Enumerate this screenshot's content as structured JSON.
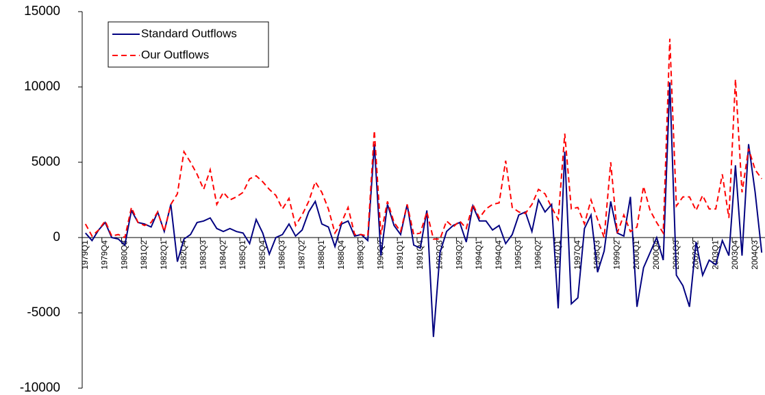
{
  "chart_data": {
    "type": "line",
    "categories": [
      "1979Q1",
      null,
      null,
      "1979Q4",
      null,
      null,
      "1980Q3",
      null,
      null,
      "1981Q2",
      null,
      null,
      "1982Q1",
      null,
      null,
      "1982Q4",
      null,
      null,
      "1983Q3",
      null,
      null,
      "1984Q2",
      null,
      null,
      "1985Q1",
      null,
      null,
      "1985Q4",
      null,
      null,
      "1986Q3",
      null,
      null,
      "1987Q2",
      null,
      null,
      "1988Q1",
      null,
      null,
      "1988Q4",
      null,
      null,
      "1989Q3",
      null,
      null,
      "1990Q2",
      null,
      null,
      "1991Q1",
      null,
      null,
      "1991Q4",
      null,
      null,
      "1992Q3",
      null,
      null,
      "1993Q2",
      null,
      null,
      "1994Q1",
      null,
      null,
      "1994Q4",
      null,
      null,
      "1995Q3",
      null,
      null,
      "1996Q2",
      null,
      null,
      "1997Q1",
      null,
      null,
      "1997Q4",
      null,
      null,
      "1998Q3",
      null,
      null,
      "1999Q2",
      null,
      null,
      "2000Q1",
      null,
      null,
      "2000Q4",
      null,
      null,
      "2001Q3",
      null,
      null,
      "2002Q2",
      null,
      null,
      "2003Q1",
      null,
      null,
      "2003Q4",
      null,
      null,
      "2004Q3",
      null
    ],
    "series": [
      {
        "name": "Standard Outflows",
        "color": "#000080",
        "line_style": "solid",
        "values": [
          300,
          -200,
          500,
          1000,
          0,
          -100,
          -500,
          1800,
          1000,
          900,
          700,
          1700,
          400,
          2200,
          -1600,
          -100,
          200,
          1000,
          1100,
          1300,
          600,
          400,
          600,
          400,
          300,
          -400,
          1200,
          300,
          -1100,
          0,
          200,
          900,
          100,
          500,
          1700,
          2400,
          900,
          700,
          -600,
          900,
          1100,
          100,
          200,
          -200,
          6200,
          -1200,
          2200,
          800,
          200,
          2200,
          -500,
          -700,
          1800,
          -6600,
          -1000,
          400,
          800,
          1000,
          -300,
          2100,
          1100,
          1100,
          500,
          800,
          -400,
          200,
          1500,
          1700,
          400,
          2500,
          1700,
          2200,
          -4700,
          5700,
          -4400,
          -4000,
          600,
          1500,
          -2300,
          -900,
          2400,
          300,
          100,
          2700,
          -4600,
          -2000,
          -1000,
          0,
          -1500,
          10300,
          -2500,
          -3200,
          -4600,
          -300,
          -2500,
          -1500,
          -1800,
          -200,
          -1200,
          4800,
          -1200,
          6200,
          3000,
          -1000
        ]
      },
      {
        "name": "Our Outflows",
        "color": "#ff0000",
        "line_style": "dashed",
        "values": [
          900,
          100,
          500,
          1100,
          100,
          200,
          0,
          2000,
          1000,
          800,
          1000,
          1700,
          400,
          2200,
          2900,
          5700,
          5000,
          4200,
          3200,
          4500,
          2200,
          3000,
          2500,
          2700,
          3000,
          3900,
          4100,
          3700,
          3200,
          2800,
          1900,
          2600,
          800,
          1500,
          2400,
          3700,
          3000,
          1900,
          300,
          1000,
          2000,
          200,
          200,
          100,
          7100,
          200,
          2400,
          1000,
          400,
          2200,
          200,
          300,
          1700,
          -100,
          -100,
          1100,
          700,
          1100,
          600,
          2200,
          1300,
          1900,
          2200,
          2300,
          5100,
          2000,
          1700,
          1600,
          2200,
          3200,
          2900,
          2000,
          1200,
          6900,
          1900,
          2000,
          900,
          2500,
          1200,
          0,
          5000,
          300,
          1500,
          400,
          700,
          3400,
          1800,
          1000,
          300,
          13200,
          2100,
          2700,
          2700,
          1800,
          2800,
          1900,
          1900,
          4200,
          1300,
          10500,
          3000,
          5900,
          4500,
          3900
        ]
      }
    ],
    "ylim": [
      -10000,
      15000
    ],
    "yticks": [
      -10000,
      -5000,
      0,
      5000,
      10000,
      15000
    ],
    "grid": false,
    "legend": "upper-left"
  }
}
